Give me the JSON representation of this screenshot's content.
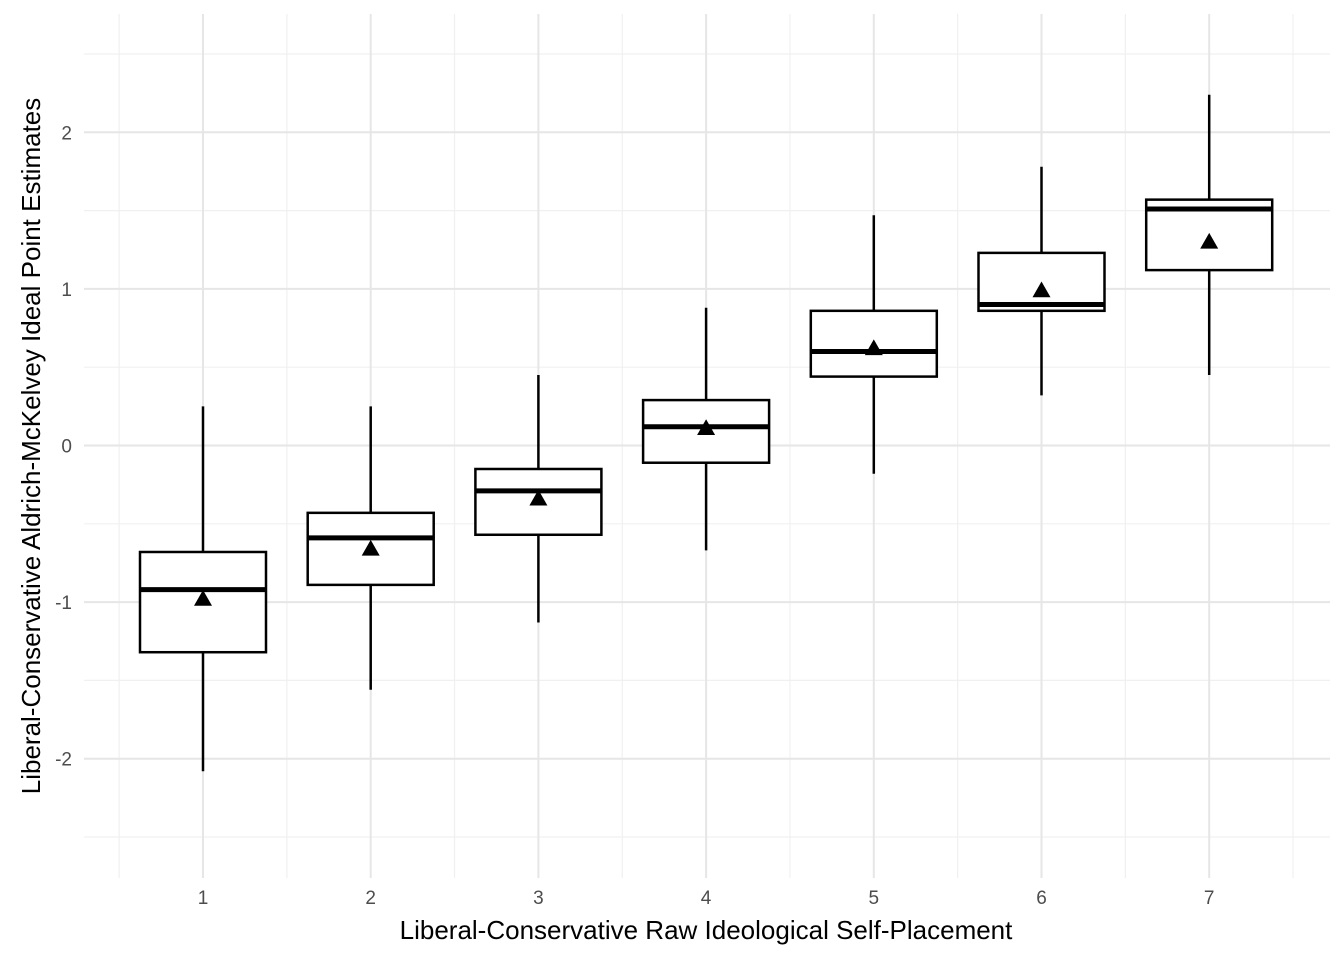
{
  "chart_data": {
    "type": "box",
    "xlabel": "Liberal-Conservative Raw Ideological Self-Placement",
    "ylabel": "Liberal-Conservative Aldrich-McKelvey Ideal Point Estimates",
    "categories": [
      "1",
      "2",
      "3",
      "4",
      "5",
      "6",
      "7"
    ],
    "y_ticks": [
      -2,
      -1,
      0,
      1,
      2
    ],
    "y_tick_labels": [
      "-2",
      "-1",
      "0",
      "1",
      "2"
    ],
    "ylim": [
      -2.6,
      2.8
    ],
    "grid": true,
    "mean_marker": "triangle",
    "boxes": [
      {
        "category": "1",
        "whisker_low": -2.08,
        "q1": -1.32,
        "median": -0.92,
        "q3": -0.68,
        "whisker_high": 0.25,
        "mean": -0.98
      },
      {
        "category": "2",
        "whisker_low": -1.56,
        "q1": -0.89,
        "median": -0.59,
        "q3": -0.43,
        "whisker_high": 0.25,
        "mean": -0.66
      },
      {
        "category": "3",
        "whisker_low": -1.13,
        "q1": -0.57,
        "median": -0.29,
        "q3": -0.15,
        "whisker_high": 0.45,
        "mean": -0.34
      },
      {
        "category": "4",
        "whisker_low": -0.67,
        "q1": -0.11,
        "median": 0.12,
        "q3": 0.29,
        "whisker_high": 0.88,
        "mean": 0.11
      },
      {
        "category": "5",
        "whisker_low": -0.18,
        "q1": 0.44,
        "median": 0.6,
        "q3": 0.86,
        "whisker_high": 1.47,
        "mean": 0.62
      },
      {
        "category": "6",
        "whisker_low": 0.32,
        "q1": 0.86,
        "median": 0.9,
        "q3": 1.23,
        "whisker_high": 1.78,
        "mean": 0.99
      },
      {
        "category": "7",
        "whisker_low": 0.45,
        "q1": 1.12,
        "median": 1.51,
        "q3": 1.57,
        "whisker_high": 2.24,
        "mean": 1.3
      }
    ]
  }
}
